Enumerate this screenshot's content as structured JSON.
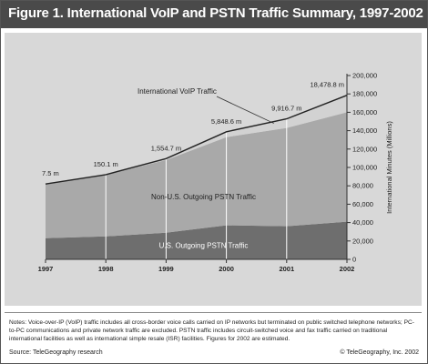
{
  "figure": {
    "title": "Figure 1. International VoIP and PSTN Traffic Summary, 1997-2002",
    "notes": "Notes: Voice-over-IP (VoIP) traffic includes all cross-border voice calls carried on IP networks but terminated on public switched telephone networks; PC-to-PC communications and private network traffic are excluded. PSTN traffic includes circuit-switched voice and fax traffic carried on traditional international facilities as well as international simple resale (ISR) facilities. Figures for 2002 are estimated.",
    "source": "Source: TeleGeography research",
    "copyright": "© TeleGeography, Inc. 2002"
  },
  "chart_data": {
    "type": "area",
    "stacked": true,
    "x": [
      "1997",
      "1998",
      "1999",
      "2000",
      "2001",
      "2002"
    ],
    "ylabel": "International Minutes (Millions)",
    "ylim": [
      0,
      200000
    ],
    "yticks": [
      0,
      20000,
      40000,
      60000,
      80000,
      100000,
      120000,
      140000,
      160000,
      180000,
      200000
    ],
    "ytick_labels": [
      "0",
      "20,000",
      "40,000",
      "60,000",
      "80,000",
      "100,000",
      "120,000",
      "140,000",
      "160,000",
      "180,000",
      "200,000"
    ],
    "y_axis_position": "right",
    "series": [
      {
        "name": "U.S. Outgoing PSTN Traffic",
        "values": [
          23000,
          25000,
          29000,
          37000,
          36000,
          41000
        ],
        "color": "#6e6e6e"
      },
      {
        "name": "Non-U.S. Outgoing PSTN Traffic",
        "values": [
          59000,
          67000,
          79000,
          96000,
          107000,
          119000
        ],
        "color": "#a9a9a9"
      },
      {
        "name": "International VoIP Traffic",
        "values": [
          7.5,
          150.1,
          1554.7,
          5848.6,
          9916.7,
          18478.8
        ],
        "color": "#d2d2d2"
      }
    ],
    "data_labels": [
      "7.5 m",
      "150.1 m",
      "1,554.7 m",
      "5,848.6 m",
      "9,916.7 m",
      "18,478.8 m"
    ],
    "series_labels": [
      "U.S. Outgoing PSTN Traffic",
      "Non-U.S. Outgoing PSTN Traffic",
      "International VoIP Traffic"
    ],
    "gridlines": "vertical"
  }
}
